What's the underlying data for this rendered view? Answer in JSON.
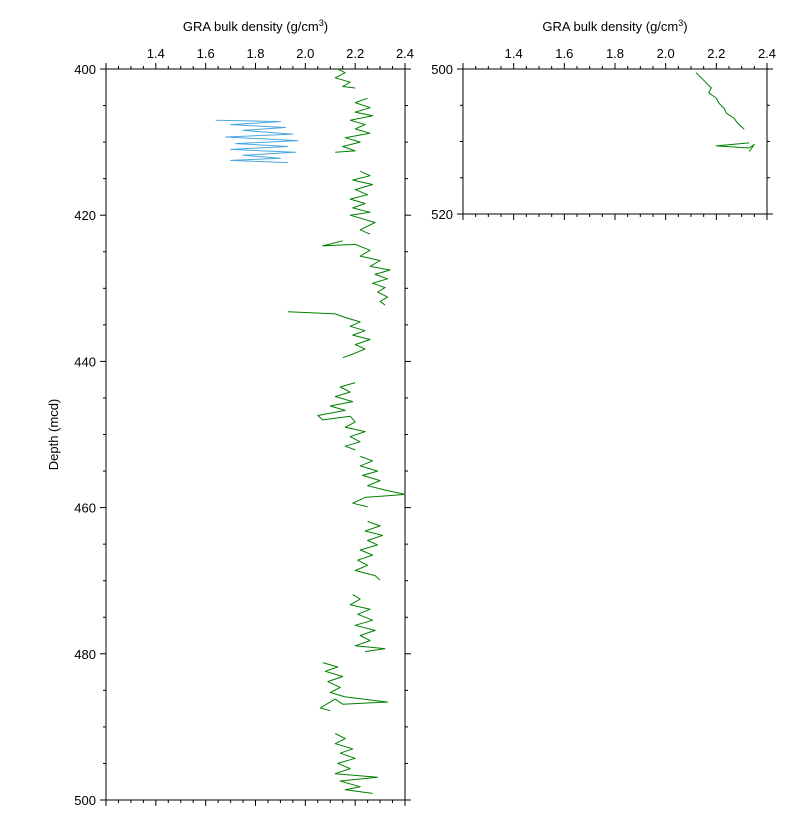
{
  "chart_data": [
    {
      "type": "line",
      "xlabel": "GRA bulk density (g/cm",
      "xlabel_sup": "3",
      "xlabel_close": ")",
      "ylabel": "Depth (mcd)",
      "xlim": [
        1.2,
        2.4
      ],
      "ylim": [
        400,
        500
      ],
      "x_ticks": [
        "1.4",
        "1.6",
        "1.8",
        "2.0",
        "2.2",
        "2.4"
      ],
      "y_ticks": [
        "400",
        "420",
        "440",
        "460",
        "480",
        "500"
      ],
      "colors": {
        "green": "#008000",
        "blue": "#4aa8e0"
      },
      "series": [
        {
          "color": "green",
          "points": [
            [
              2.13,
              400.0
            ],
            [
              2.16,
              400.5
            ],
            [
              2.12,
              401.2
            ],
            [
              2.18,
              401.8
            ],
            [
              2.15,
              402.4
            ],
            [
              2.2,
              402.6
            ]
          ]
        },
        {
          "color": "green",
          "points": [
            [
              2.25,
              404.0
            ],
            [
              2.2,
              404.6
            ],
            [
              2.26,
              405.3
            ],
            [
              2.2,
              405.9
            ],
            [
              2.27,
              406.4
            ],
            [
              2.18,
              407.0
            ],
            [
              2.24,
              407.6
            ],
            [
              2.2,
              408.2
            ],
            [
              2.26,
              408.8
            ],
            [
              2.16,
              409.4
            ],
            [
              2.22,
              410.0
            ],
            [
              2.15,
              410.6
            ],
            [
              2.2,
              411.2
            ],
            [
              2.12,
              411.4
            ]
          ]
        },
        {
          "color": "blue",
          "points": [
            [
              1.64,
              407.0
            ],
            [
              1.9,
              407.2
            ],
            [
              1.7,
              407.6
            ],
            [
              1.92,
              408.0
            ],
            [
              1.75,
              408.4
            ],
            [
              1.95,
              408.9
            ],
            [
              1.68,
              409.3
            ],
            [
              1.97,
              409.8
            ],
            [
              1.72,
              410.2
            ],
            [
              1.93,
              410.6
            ],
            [
              1.7,
              411.0
            ],
            [
              1.96,
              411.4
            ],
            [
              1.75,
              411.8
            ],
            [
              1.9,
              412.2
            ],
            [
              1.7,
              412.5
            ],
            [
              1.93,
              412.8
            ]
          ]
        },
        {
          "color": "green",
          "points": [
            [
              2.22,
              414.0
            ],
            [
              2.26,
              414.6
            ],
            [
              2.19,
              415.2
            ],
            [
              2.27,
              415.8
            ],
            [
              2.2,
              416.5
            ],
            [
              2.25,
              417.2
            ],
            [
              2.18,
              417.8
            ],
            [
              2.24,
              418.4
            ],
            [
              2.19,
              419.0
            ],
            [
              2.26,
              419.6
            ],
            [
              2.18,
              420.0
            ],
            [
              2.28,
              421.0
            ],
            [
              2.22,
              422.0
            ],
            [
              2.26,
              422.6
            ]
          ]
        },
        {
          "color": "green",
          "points": [
            [
              2.15,
              423.5
            ],
            [
              2.07,
              424.2
            ],
            [
              2.2,
              424.0
            ],
            [
              2.26,
              424.8
            ],
            [
              2.22,
              425.6
            ],
            [
              2.3,
              426.2
            ],
            [
              2.26,
              427.0
            ],
            [
              2.34,
              427.5
            ],
            [
              2.28,
              428.1
            ],
            [
              2.33,
              428.7
            ],
            [
              2.27,
              429.3
            ],
            [
              2.32,
              429.9
            ],
            [
              2.29,
              430.5
            ],
            [
              2.33,
              431.2
            ],
            [
              2.3,
              431.8
            ],
            [
              2.32,
              432.3
            ]
          ]
        },
        {
          "color": "green",
          "points": [
            [
              1.93,
              433.2
            ],
            [
              2.12,
              433.5
            ],
            [
              2.16,
              434.0
            ],
            [
              2.22,
              434.6
            ],
            [
              2.18,
              435.2
            ],
            [
              2.24,
              435.8
            ],
            [
              2.19,
              436.4
            ],
            [
              2.26,
              437.0
            ],
            [
              2.2,
              437.7
            ],
            [
              2.24,
              438.3
            ],
            [
              2.19,
              439.0
            ],
            [
              2.15,
              439.5
            ]
          ]
        },
        {
          "color": "green",
          "points": [
            [
              2.2,
              442.9
            ],
            [
              2.14,
              443.5
            ],
            [
              2.18,
              444.2
            ],
            [
              2.12,
              444.8
            ],
            [
              2.19,
              445.5
            ],
            [
              2.1,
              446.1
            ],
            [
              2.16,
              446.7
            ],
            [
              2.05,
              447.4
            ],
            [
              2.07,
              448.0
            ],
            [
              2.18,
              447.5
            ],
            [
              2.2,
              448.3
            ],
            [
              2.16,
              449.0
            ],
            [
              2.24,
              449.6
            ],
            [
              2.18,
              450.3
            ],
            [
              2.22,
              451.0
            ],
            [
              2.16,
              451.6
            ],
            [
              2.2,
              452.1
            ]
          ]
        },
        {
          "color": "green",
          "points": [
            [
              2.22,
              453.0
            ],
            [
              2.27,
              453.6
            ],
            [
              2.22,
              454.3
            ],
            [
              2.29,
              455.0
            ],
            [
              2.23,
              455.6
            ],
            [
              2.3,
              456.3
            ],
            [
              2.25,
              457.0
            ],
            [
              2.32,
              457.6
            ],
            [
              2.4,
              458.2
            ],
            [
              2.24,
              458.6
            ],
            [
              2.19,
              459.4
            ],
            [
              2.25,
              459.9
            ]
          ]
        },
        {
          "color": "green",
          "points": [
            [
              2.25,
              461.9
            ],
            [
              2.3,
              462.5
            ],
            [
              2.24,
              463.2
            ],
            [
              2.31,
              463.8
            ],
            [
              2.25,
              464.5
            ],
            [
              2.29,
              465.1
            ],
            [
              2.22,
              465.8
            ],
            [
              2.27,
              466.5
            ],
            [
              2.21,
              467.2
            ],
            [
              2.25,
              467.9
            ],
            [
              2.2,
              468.6
            ],
            [
              2.28,
              469.3
            ],
            [
              2.3,
              469.9
            ]
          ]
        },
        {
          "color": "green",
          "points": [
            [
              2.19,
              471.9
            ],
            [
              2.22,
              472.5
            ],
            [
              2.18,
              473.3
            ],
            [
              2.26,
              473.9
            ],
            [
              2.21,
              474.6
            ],
            [
              2.27,
              475.4
            ],
            [
              2.2,
              476.1
            ],
            [
              2.28,
              476.8
            ],
            [
              2.22,
              477.5
            ],
            [
              2.26,
              478.2
            ],
            [
              2.2,
              478.9
            ],
            [
              2.32,
              479.3
            ],
            [
              2.24,
              479.7
            ]
          ]
        },
        {
          "color": "green",
          "points": [
            [
              2.07,
              481.2
            ],
            [
              2.13,
              481.8
            ],
            [
              2.08,
              482.4
            ],
            [
              2.15,
              483.1
            ],
            [
              2.09,
              483.8
            ],
            [
              2.14,
              484.6
            ],
            [
              2.1,
              485.3
            ],
            [
              2.16,
              485.9
            ],
            [
              2.33,
              486.6
            ],
            [
              2.15,
              486.9
            ],
            [
              2.12,
              486.2
            ],
            [
              2.06,
              487.4
            ],
            [
              2.1,
              487.8
            ]
          ]
        },
        {
          "color": "green",
          "points": [
            [
              2.12,
              490.9
            ],
            [
              2.16,
              491.6
            ],
            [
              2.12,
              492.3
            ],
            [
              2.19,
              493.0
            ],
            [
              2.14,
              493.6
            ],
            [
              2.2,
              494.3
            ],
            [
              2.13,
              495.0
            ],
            [
              2.18,
              495.7
            ],
            [
              2.12,
              496.4
            ],
            [
              2.29,
              496.9
            ],
            [
              2.14,
              497.4
            ],
            [
              2.22,
              498.2
            ],
            [
              2.16,
              498.6
            ],
            [
              2.27,
              499.1
            ]
          ]
        }
      ]
    },
    {
      "type": "line",
      "xlabel": "GRA bulk density (g/cm",
      "xlabel_sup": "3",
      "xlabel_close": ")",
      "ylabel": "",
      "xlim": [
        1.2,
        2.4
      ],
      "ylim": [
        500,
        520
      ],
      "x_ticks": [
        "1.4",
        "1.6",
        "1.8",
        "2.0",
        "2.2",
        "2.4"
      ],
      "y_ticks": [
        "500",
        "520"
      ],
      "colors": {
        "green": "#008000"
      },
      "series": [
        {
          "color": "green",
          "points": [
            [
              2.12,
              500.5
            ],
            [
              2.14,
              501.2
            ],
            [
              2.16,
              501.9
            ],
            [
              2.18,
              502.6
            ],
            [
              2.17,
              503.3
            ],
            [
              2.2,
              504.0
            ],
            [
              2.21,
              504.7
            ],
            [
              2.23,
              505.4
            ],
            [
              2.24,
              506.1
            ],
            [
              2.27,
              506.8
            ],
            [
              2.28,
              507.3
            ],
            [
              2.3,
              508.0
            ],
            [
              2.31,
              508.3
            ]
          ]
        },
        {
          "color": "green",
          "points": [
            [
              2.33,
              510.2
            ],
            [
              2.2,
              510.6
            ],
            [
              2.33,
              510.9
            ],
            [
              2.35,
              510.4
            ],
            [
              2.33,
              511.4
            ]
          ]
        }
      ]
    }
  ]
}
